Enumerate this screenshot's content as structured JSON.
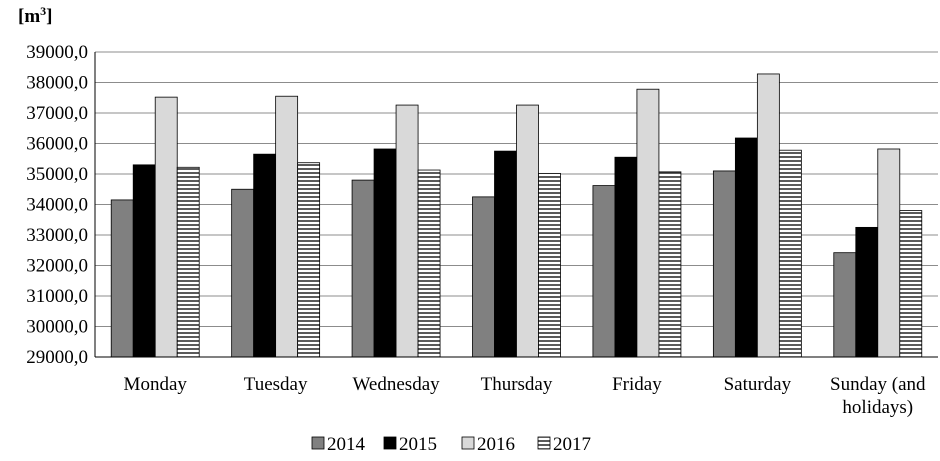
{
  "chart_data": {
    "type": "bar",
    "ylabel": "[m",
    "ylabel_sup": "3",
    "ylabel_close": "]",
    "ylim": [
      29000,
      39000
    ],
    "ytick_step": 1000,
    "ytick_labels": [
      "29000,0",
      "30000,0",
      "31000,0",
      "32000,0",
      "33000,0",
      "34000,0",
      "35000,0",
      "36000,0",
      "37000,0",
      "38000,0",
      "39000,0"
    ],
    "grid": true,
    "legend_position": "bottom",
    "categories": [
      [
        "Monday"
      ],
      [
        "Tuesday"
      ],
      [
        "Wednesday"
      ],
      [
        "Thursday"
      ],
      [
        "Friday"
      ],
      [
        "Saturday"
      ],
      [
        "Sunday (and",
        "holidays)"
      ]
    ],
    "series": [
      {
        "name": "2014",
        "fill": "#808080",
        "pattern": "solid",
        "values": [
          34150,
          34500,
          34800,
          34250,
          34620,
          35100,
          32420
        ]
      },
      {
        "name": "2015",
        "fill": "#000000",
        "pattern": "solid",
        "values": [
          35300,
          35650,
          35820,
          35750,
          35550,
          36180,
          33250
        ]
      },
      {
        "name": "2016",
        "fill": "#d9d9d9",
        "pattern": "solid",
        "values": [
          37520,
          37550,
          37260,
          37260,
          37780,
          38280,
          35820
        ]
      },
      {
        "name": "2017",
        "fill": "#ffffff",
        "pattern": "horizontal-lines",
        "values": [
          35220,
          35370,
          35130,
          35020,
          35070,
          35780,
          33800
        ]
      }
    ]
  }
}
